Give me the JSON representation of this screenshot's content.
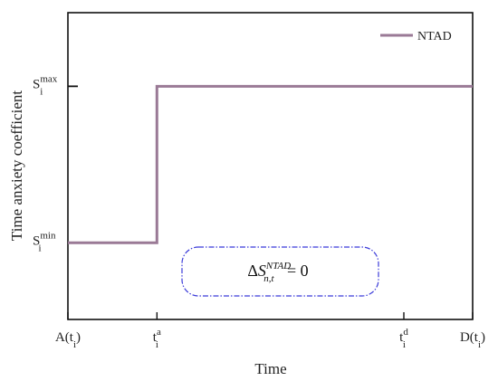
{
  "chart_data": {
    "type": "line",
    "title": "",
    "xlabel": "Time",
    "ylabel": "Time anxiety coefficient",
    "xlim": [
      0,
      10
    ],
    "ylim": [
      0,
      10
    ],
    "x_ticks": [
      {
        "x": 0,
        "main": "A(t",
        "sub": "i",
        "close": ")"
      },
      {
        "x": 2.2,
        "main": "t",
        "sub": "i",
        "sup": "a"
      },
      {
        "x": 8.3,
        "main": "t",
        "sub": "i",
        "sup": "d"
      },
      {
        "x": 10,
        "main": "D(t",
        "sub": "i",
        "close": ")"
      }
    ],
    "y_ticks": [
      {
        "y": 2.5,
        "main": "S",
        "sub": "i",
        "sup": "min"
      },
      {
        "y": 7.6,
        "main": "S",
        "sub": "i",
        "sup": "max"
      }
    ],
    "series": [
      {
        "name": "NTAD",
        "color": "#9a7a96",
        "points": [
          [
            0,
            2.5
          ],
          [
            2.2,
            2.5
          ],
          [
            2.2,
            7.6
          ],
          [
            10,
            7.6
          ]
        ]
      }
    ],
    "legend_position": "top-right",
    "grid": false,
    "annotation": {
      "delta": "Δ",
      "var": "S",
      "sup": "NTAD",
      "sub": "n,t",
      "rhs": " = 0",
      "x": 5.0,
      "y": 1.6,
      "border_color": "#3b3bd9"
    }
  }
}
